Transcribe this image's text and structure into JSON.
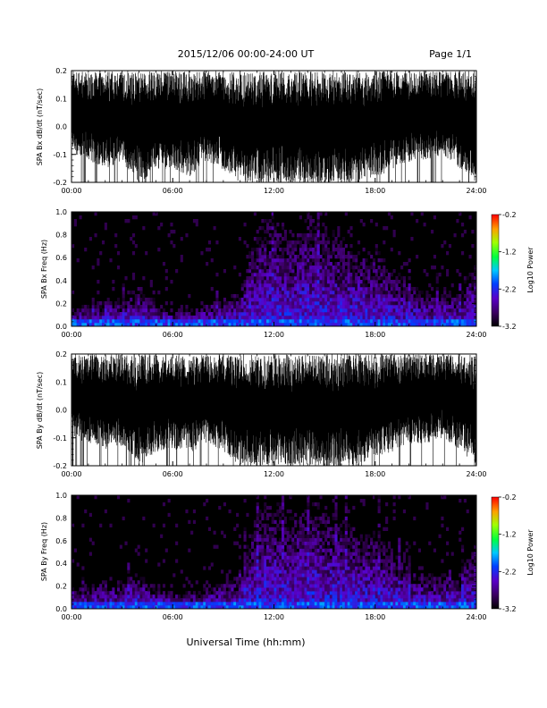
{
  "header": {
    "title": "2015/12/06  00:00-24:00 UT",
    "page": "Page 1/1"
  },
  "xlabel": "Universal Time (hh:mm)",
  "chart_data": [
    {
      "type": "line",
      "ylabel": "SPA Bx dB/dt (nT/sec)",
      "xlim": [
        0,
        24
      ],
      "ylim": [
        -0.2,
        0.2
      ],
      "xticks": [
        "00:00",
        "06:00",
        "12:00",
        "18:00",
        "24:00"
      ],
      "yticks": [
        "-0.2",
        "-0.1",
        "0.0",
        "0.1",
        "0.2"
      ],
      "x": [
        0,
        1,
        2,
        3,
        4,
        5,
        6,
        7,
        8,
        9,
        10,
        11,
        12,
        13,
        14,
        15,
        16,
        17,
        18,
        19,
        20,
        21,
        22,
        23,
        24
      ],
      "envelope_max": [
        0.2,
        0.2,
        0.2,
        0.2,
        0.2,
        0.2,
        0.2,
        0.2,
        0.2,
        0.2,
        0.2,
        0.2,
        0.2,
        0.2,
        0.2,
        0.2,
        0.2,
        0.2,
        0.2,
        0.2,
        0.2,
        0.2,
        0.2,
        0.2,
        0.2
      ],
      "envelope_min": [
        -0.1,
        -0.12,
        -0.15,
        -0.13,
        -0.2,
        -0.16,
        -0.15,
        -0.18,
        -0.12,
        -0.16,
        -0.2,
        -0.2,
        -0.2,
        -0.2,
        -0.2,
        -0.2,
        -0.2,
        -0.2,
        -0.18,
        -0.16,
        -0.13,
        -0.12,
        -0.1,
        -0.15,
        -0.2
      ]
    },
    {
      "type": "heatmap",
      "ylabel": "SPA Bx Freq (Hz)",
      "xlim": [
        0,
        24
      ],
      "ylim": [
        0,
        1.0
      ],
      "xticks": [
        "00:00",
        "06:00",
        "12:00",
        "18:00",
        "24:00"
      ],
      "yticks": [
        "0.0",
        "0.2",
        "0.4",
        "0.6",
        "0.8",
        "1.0"
      ],
      "colorbar": {
        "label": "Log10 Power",
        "ticks": [
          "-0.2",
          "-1.2",
          "-2.2",
          "-3.2"
        ],
        "range": [
          -3.2,
          -0.2
        ]
      },
      "activity_x": [
        0,
        1,
        2,
        3,
        4,
        5,
        6,
        7,
        8,
        9,
        10,
        11,
        12,
        13,
        14,
        15,
        16,
        17,
        18,
        19,
        20,
        21,
        22,
        23,
        24
      ],
      "activity_top_freq": [
        0.15,
        0.2,
        0.25,
        0.25,
        0.35,
        0.2,
        0.15,
        0.15,
        0.2,
        0.25,
        0.3,
        0.9,
        1.0,
        0.8,
        1.0,
        0.9,
        0.8,
        0.7,
        0.7,
        0.5,
        0.4,
        0.3,
        0.3,
        0.3,
        0.6
      ]
    },
    {
      "type": "line",
      "ylabel": "SPA By dB/dt (nT/sec)",
      "xlim": [
        0,
        24
      ],
      "ylim": [
        -0.2,
        0.2
      ],
      "xticks": [
        "00:00",
        "06:00",
        "12:00",
        "18:00",
        "24:00"
      ],
      "yticks": [
        "-0.2",
        "-0.1",
        "0.0",
        "0.1",
        "0.2"
      ],
      "x": [
        0,
        1,
        2,
        3,
        4,
        5,
        6,
        7,
        8,
        9,
        10,
        11,
        12,
        13,
        14,
        15,
        16,
        17,
        18,
        19,
        20,
        21,
        22,
        23,
        24
      ],
      "envelope_max": [
        0.2,
        0.2,
        0.2,
        0.2,
        0.2,
        0.2,
        0.2,
        0.2,
        0.2,
        0.2,
        0.2,
        0.2,
        0.2,
        0.2,
        0.2,
        0.2,
        0.2,
        0.2,
        0.2,
        0.2,
        0.2,
        0.2,
        0.2,
        0.2,
        0.2
      ],
      "envelope_min": [
        -0.1,
        -0.12,
        -0.14,
        -0.13,
        -0.2,
        -0.15,
        -0.14,
        -0.16,
        -0.12,
        -0.15,
        -0.2,
        -0.2,
        -0.2,
        -0.2,
        -0.2,
        -0.2,
        -0.2,
        -0.2,
        -0.17,
        -0.15,
        -0.12,
        -0.12,
        -0.1,
        -0.14,
        -0.2
      ]
    },
    {
      "type": "heatmap",
      "ylabel": "SPA By Freq (Hz)",
      "xlim": [
        0,
        24
      ],
      "ylim": [
        0,
        1.0
      ],
      "xticks": [
        "00:00",
        "06:00",
        "12:00",
        "18:00",
        "24:00"
      ],
      "yticks": [
        "0.0",
        "0.2",
        "0.4",
        "0.6",
        "0.8",
        "1.0"
      ],
      "colorbar": {
        "label": "Log10 Power",
        "ticks": [
          "-0.2",
          "-1.2",
          "-2.2",
          "-3.2"
        ],
        "range": [
          -3.2,
          -0.2
        ]
      },
      "activity_x": [
        0,
        1,
        2,
        3,
        4,
        5,
        6,
        7,
        8,
        9,
        10,
        11,
        12,
        13,
        14,
        15,
        16,
        17,
        18,
        19,
        20,
        21,
        22,
        23,
        24
      ],
      "activity_top_freq": [
        0.15,
        0.2,
        0.25,
        0.25,
        0.35,
        0.2,
        0.15,
        0.15,
        0.2,
        0.25,
        0.3,
        0.9,
        1.0,
        0.8,
        1.0,
        0.9,
        0.8,
        0.7,
        0.7,
        0.5,
        0.4,
        0.3,
        0.3,
        0.3,
        0.6
      ]
    }
  ]
}
